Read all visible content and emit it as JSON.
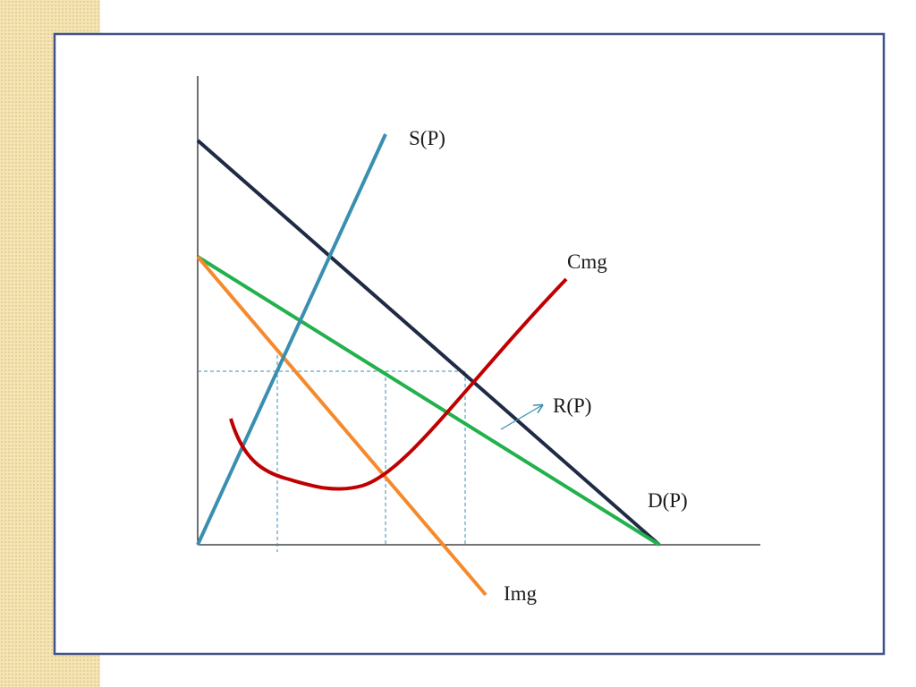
{
  "labels": {
    "supply": "S(P)",
    "marginal_cost": "Cmg",
    "revenue": "R(P)",
    "demand": "D(P)",
    "marginal_revenue": "Img"
  }
}
